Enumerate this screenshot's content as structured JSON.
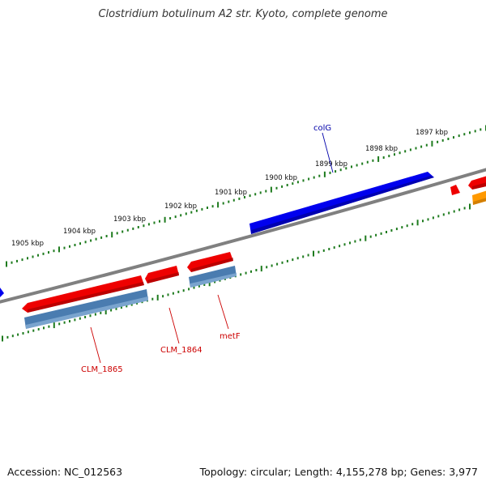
{
  "title": "Clostridium botulinum A2 str. Kyoto, complete genome",
  "footer": {
    "accession": "Accession: NC_012563",
    "summary": "Topology: circular; Length: 4,155,278 bp; Genes: 3,977"
  },
  "colors": {
    "backbone": "#808080",
    "tick": "#1e7b1e",
    "red_feature": "#ee0000",
    "blue_feature": "#0000ee",
    "steel_feature": "#4a7cb0",
    "orange_feature": "#ff9900",
    "label_red": "#cc0000",
    "label_blue": "#0000aa"
  },
  "ticks": {
    "labels": [
      "1897 kbp",
      "1898 kbp",
      "1899 kbp",
      "1900 kbp",
      "1901 kbp",
      "1902 kbp",
      "1903 kbp",
      "1904 kbp",
      "1905 kbp"
    ]
  },
  "gene_labels": [
    "colG",
    "CLM_1864",
    "CLM_1865",
    "metF"
  ]
}
